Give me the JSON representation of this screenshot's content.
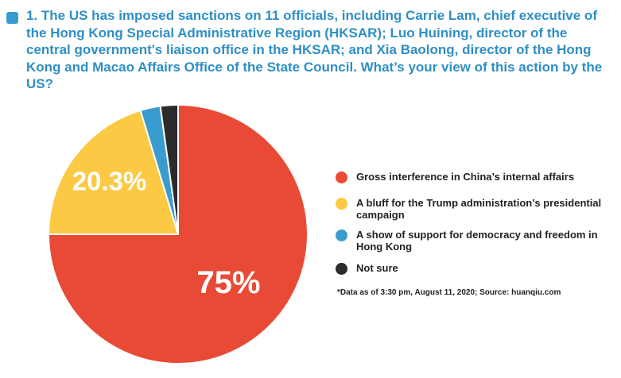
{
  "question": "1. The US has imposed sanctions on 11 officials, including Carrie Lam, chief executive of the Hong Kong Special Administrative Region (HKSAR); Luo Huining, director of the central government's liaison office in the HKSAR; and Xia Baolong, director of the Hong Kong and Macao Affairs Office of the State Council. What’s your view of this action by the US?",
  "footnote": "*Data as of 3:30 pm, August 11, 2020; Source: huanqiu.com",
  "colors": {
    "question_text": "#2f8fc4",
    "marker": "#3a9bcf"
  },
  "chart_data": {
    "type": "pie",
    "title": "",
    "unit": "%",
    "legend_position": "right",
    "slices": [
      {
        "label": "Gross interference in China’s internal affairs",
        "value": 75,
        "display": "75%",
        "color": "#e84a36"
      },
      {
        "label": "A bluff for the Trump administration’s presidential campaign",
        "value": 20.3,
        "display": "20.3%",
        "color": "#fbc943"
      },
      {
        "label": "A show of support for democracy and freedom in Hong Kong",
        "value": 2.5,
        "display": "",
        "color": "#3a9bcf"
      },
      {
        "label": "Not sure",
        "value": 2.2,
        "display": "",
        "color": "#2b2b2b"
      }
    ]
  }
}
